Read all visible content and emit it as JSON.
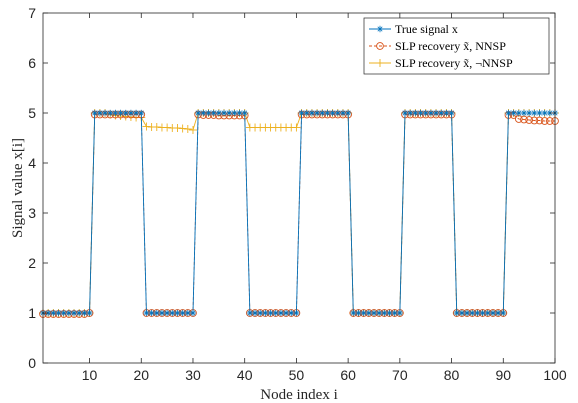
{
  "chart_data": {
    "type": "line",
    "xlabel": "Node index i",
    "ylabel": "Signal value x[i]",
    "xlim": [
      1,
      100
    ],
    "ylim": [
      0,
      7
    ],
    "x_ticks": [
      10,
      20,
      30,
      40,
      50,
      60,
      70,
      80,
      90,
      100
    ],
    "y_ticks": [
      0,
      1,
      2,
      3,
      4,
      5,
      6,
      7
    ],
    "grid": false,
    "legend_position": "top-right",
    "colors": {
      "true_signal": "#0072BD",
      "nnsp": "#D95319",
      "not_nnsp": "#EDB120",
      "axis": "#262626"
    },
    "x": [
      1,
      2,
      3,
      4,
      5,
      6,
      7,
      8,
      9,
      10,
      11,
      12,
      13,
      14,
      15,
      16,
      17,
      18,
      19,
      20,
      21,
      22,
      23,
      24,
      25,
      26,
      27,
      28,
      29,
      30,
      31,
      32,
      33,
      34,
      35,
      36,
      37,
      38,
      39,
      40,
      41,
      42,
      43,
      44,
      45,
      46,
      47,
      48,
      49,
      50,
      51,
      52,
      53,
      54,
      55,
      56,
      57,
      58,
      59,
      60,
      61,
      62,
      63,
      64,
      65,
      66,
      67,
      68,
      69,
      70,
      71,
      72,
      73,
      74,
      75,
      76,
      77,
      78,
      79,
      80,
      81,
      82,
      83,
      84,
      85,
      86,
      87,
      88,
      89,
      90,
      91,
      92,
      93,
      94,
      95,
      96,
      97,
      98,
      99,
      100
    ],
    "series": [
      {
        "name": "True signal x",
        "marker": "asterisk",
        "values": [
          1,
          1,
          1,
          1,
          1,
          1,
          1,
          1,
          1,
          1,
          5,
          5,
          5,
          5,
          5,
          5,
          5,
          5,
          5,
          5,
          1,
          1,
          1,
          1,
          1,
          1,
          1,
          1,
          1,
          1,
          5,
          5,
          5,
          5,
          5,
          5,
          5,
          5,
          5,
          5,
          1,
          1,
          1,
          1,
          1,
          1,
          1,
          1,
          1,
          1,
          5,
          5,
          5,
          5,
          5,
          5,
          5,
          5,
          5,
          5,
          1,
          1,
          1,
          1,
          1,
          1,
          1,
          1,
          1,
          1,
          5,
          5,
          5,
          5,
          5,
          5,
          5,
          5,
          5,
          5,
          1,
          1,
          1,
          1,
          1,
          1,
          1,
          1,
          1,
          1,
          5,
          5,
          5,
          5,
          5,
          5,
          5,
          5,
          5,
          5
        ]
      },
      {
        "name": "SLP recovery x̃, NNSP",
        "marker": "circle",
        "values": [
          0.98,
          0.98,
          0.98,
          0.98,
          0.98,
          0.98,
          0.98,
          0.98,
          0.98,
          1.0,
          4.97,
          4.97,
          4.97,
          4.97,
          4.97,
          4.97,
          4.97,
          4.97,
          4.97,
          4.97,
          1.0,
          1.0,
          1.0,
          1.0,
          1.0,
          1.0,
          1.0,
          1.0,
          1.0,
          1.0,
          4.97,
          4.96,
          4.96,
          4.96,
          4.95,
          4.95,
          4.95,
          4.95,
          4.95,
          4.95,
          1.0,
          1.0,
          1.0,
          1.0,
          1.0,
          1.0,
          1.0,
          1.0,
          1.0,
          1.0,
          4.97,
          4.97,
          4.97,
          4.97,
          4.97,
          4.97,
          4.97,
          4.97,
          4.97,
          4.97,
          1.0,
          1.0,
          1.0,
          1.0,
          1.0,
          1.0,
          1.0,
          1.0,
          1.0,
          1.0,
          4.97,
          4.97,
          4.97,
          4.97,
          4.97,
          4.97,
          4.97,
          4.97,
          4.97,
          4.97,
          1.0,
          1.0,
          1.0,
          1.0,
          1.0,
          1.0,
          1.0,
          1.0,
          1.0,
          1.0,
          4.96,
          4.96,
          4.88,
          4.87,
          4.86,
          4.85,
          4.85,
          4.84,
          4.84,
          4.84
        ]
      },
      {
        "name": "SLP recovery x̃, ¬NNSP",
        "marker": "plus",
        "values": [
          1,
          1,
          1,
          1,
          1,
          1,
          1,
          1,
          1,
          1,
          5,
          5,
          5,
          4.97,
          4.95,
          4.94,
          4.93,
          4.92,
          4.91,
          4.91,
          4.73,
          4.72,
          4.72,
          4.71,
          4.71,
          4.7,
          4.7,
          4.69,
          4.68,
          4.66,
          5,
          5,
          5,
          5,
          5,
          5,
          5,
          5,
          5,
          5,
          4.71,
          4.71,
          4.71,
          4.71,
          4.71,
          4.71,
          4.71,
          4.71,
          4.71,
          4.71,
          5,
          5,
          5,
          5,
          5,
          5,
          5,
          5,
          5,
          5,
          1,
          1,
          1,
          1,
          1,
          1,
          1,
          1,
          1,
          1,
          5,
          5,
          5,
          5,
          5,
          5,
          5,
          5,
          5,
          5,
          1,
          1,
          1,
          1,
          1,
          1,
          1,
          1,
          1,
          1,
          5,
          5,
          5,
          5,
          5,
          5,
          5,
          5,
          5,
          5
        ]
      }
    ]
  }
}
